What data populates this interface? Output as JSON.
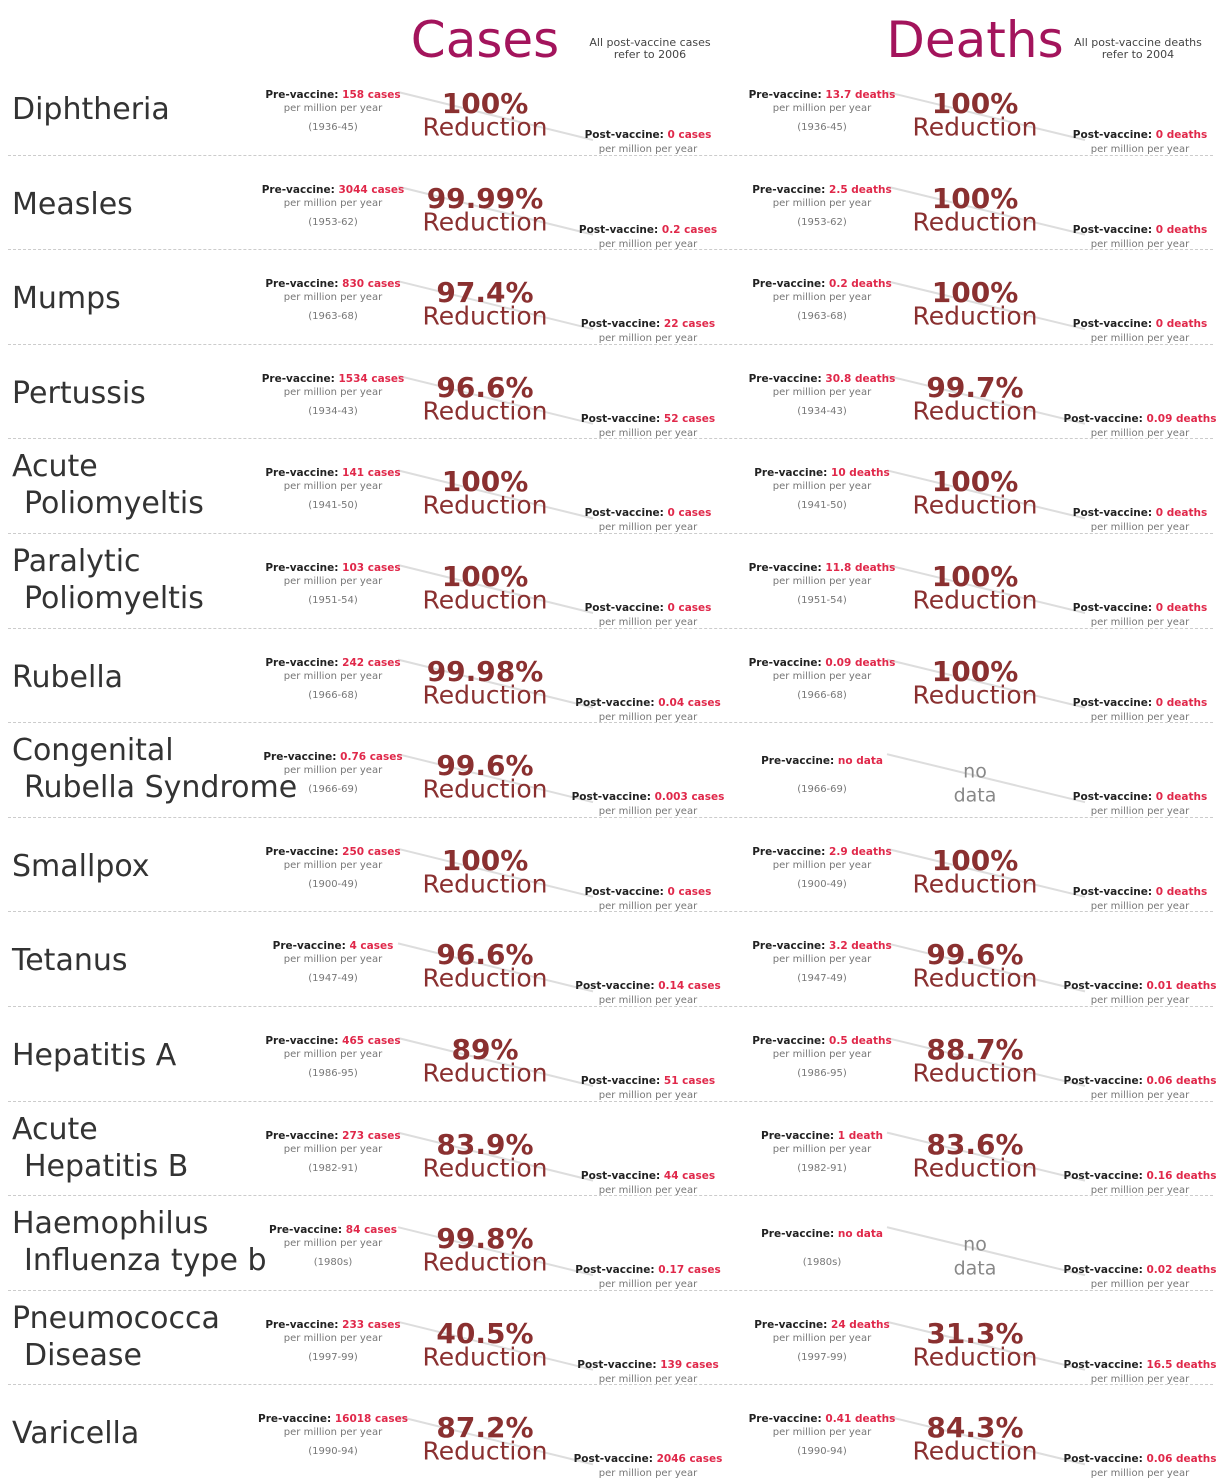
{
  "header": {
    "cases_title": "Cases",
    "cases_note": [
      "All post-vaccine cases",
      "refer to 2006"
    ],
    "deaths_title": "Deaths",
    "deaths_note": [
      "All post-vaccine deaths",
      "refer to 2004"
    ]
  },
  "labels": {
    "pre": "Pre-vaccine:",
    "post": "Post-vaccine:",
    "unit": "per million per year",
    "reduction": "Reduction",
    "no_data": [
      "no",
      "data"
    ]
  },
  "rows": [
    {
      "name": [
        "Diphtheria"
      ],
      "cases": {
        "pre": "158 cases",
        "period": "(1936-45)",
        "reduction": "100%",
        "post": "0 cases"
      },
      "deaths": {
        "pre": "13.7 deaths",
        "period": "(1936-45)",
        "reduction": "100%",
        "post": "0 deaths"
      }
    },
    {
      "name": [
        "Measles"
      ],
      "cases": {
        "pre": "3044 cases",
        "period": "(1953-62)",
        "reduction": "99.99%",
        "post": "0.2 cases"
      },
      "deaths": {
        "pre": "2.5 deaths",
        "period": "(1953-62)",
        "reduction": "100%",
        "post": "0 deaths"
      }
    },
    {
      "name": [
        "Mumps"
      ],
      "cases": {
        "pre": "830 cases",
        "period": "(1963-68)",
        "reduction": "97.4%",
        "post": "22 cases"
      },
      "deaths": {
        "pre": "0.2 deaths",
        "period": "(1963-68)",
        "reduction": "100%",
        "post": "0 deaths"
      }
    },
    {
      "name": [
        "Pertussis"
      ],
      "cases": {
        "pre": "1534 cases",
        "period": "(1934-43)",
        "reduction": "96.6%",
        "post": "52 cases"
      },
      "deaths": {
        "pre": "30.8 deaths",
        "period": "(1934-43)",
        "reduction": "99.7%",
        "post": "0.09 deaths"
      }
    },
    {
      "name": [
        "Acute",
        "Poliomyeltis"
      ],
      "cases": {
        "pre": "141 cases",
        "period": "(1941-50)",
        "reduction": "100%",
        "post": "0 cases"
      },
      "deaths": {
        "pre": "10 deaths",
        "period": "(1941-50)",
        "reduction": "100%",
        "post": "0 deaths"
      }
    },
    {
      "name": [
        "Paralytic",
        "Poliomyeltis"
      ],
      "cases": {
        "pre": "103 cases",
        "period": "(1951-54)",
        "reduction": "100%",
        "post": "0 cases"
      },
      "deaths": {
        "pre": "11.8 deaths",
        "period": "(1951-54)",
        "reduction": "100%",
        "post": "0 deaths"
      }
    },
    {
      "name": [
        "Rubella"
      ],
      "cases": {
        "pre": "242 cases",
        "period": "(1966-68)",
        "reduction": "99.98%",
        "post": "0.04 cases"
      },
      "deaths": {
        "pre": "0.09 deaths",
        "period": "(1966-68)",
        "reduction": "100%",
        "post": "0 deaths"
      }
    },
    {
      "name": [
        "Congenital",
        "Rubella Syndrome"
      ],
      "cases": {
        "pre": "0.76 cases",
        "period": "(1966-69)",
        "reduction": "99.6%",
        "post": "0.003 cases"
      },
      "deaths": {
        "pre": "no data",
        "period": "(1966-69)",
        "post": "0 deaths"
      }
    },
    {
      "name": [
        "Smallpox"
      ],
      "cases": {
        "pre": "250 cases",
        "period": "(1900-49)",
        "reduction": "100%",
        "post": "0 cases"
      },
      "deaths": {
        "pre": "2.9 deaths",
        "period": "(1900-49)",
        "reduction": "100%",
        "post": "0 deaths"
      }
    },
    {
      "name": [
        "Tetanus"
      ],
      "cases": {
        "pre": "4 cases",
        "period": "(1947-49)",
        "reduction": "96.6%",
        "post": "0.14 cases"
      },
      "deaths": {
        "pre": "3.2 deaths",
        "period": "(1947-49)",
        "reduction": "99.6%",
        "post": "0.01 deaths"
      }
    },
    {
      "name": [
        "Hepatitis A"
      ],
      "cases": {
        "pre": "465 cases",
        "period": "(1986-95)",
        "reduction": "89%",
        "post": "51 cases"
      },
      "deaths": {
        "pre": "0.5 deaths",
        "period": "(1986-95)",
        "reduction": "88.7%",
        "post": "0.06 deaths"
      }
    },
    {
      "name": [
        "Acute",
        "Hepatitis B"
      ],
      "cases": {
        "pre": "273 cases",
        "period": "(1982-91)",
        "reduction": "83.9%",
        "post": "44 cases"
      },
      "deaths": {
        "pre": "1 death",
        "period": "(1982-91)",
        "reduction": "83.6%",
        "post": "0.16 deaths"
      }
    },
    {
      "name": [
        "Haemophilus",
        "Influenza type b"
      ],
      "cases": {
        "pre": "84 cases",
        "period": "(1980s)",
        "reduction": "99.8%",
        "post": "0.17 cases"
      },
      "deaths": {
        "pre": "no data",
        "period": "(1980s)",
        "post": "0.02 deaths"
      }
    },
    {
      "name": [
        "Pneumococca",
        "Disease"
      ],
      "cases": {
        "pre": "233 cases",
        "period": "(1997-99)",
        "reduction": "40.5%",
        "post": "139 cases"
      },
      "deaths": {
        "pre": "24 deaths",
        "period": "(1997-99)",
        "reduction": "31.3%",
        "post": "16.5 deaths"
      }
    },
    {
      "name": [
        "Varicella"
      ],
      "cases": {
        "pre": "16018 cases",
        "period": "(1990-94)",
        "reduction": "87.2%",
        "post": "2046 cases"
      },
      "deaths": {
        "pre": "0.41 deaths",
        "period": "(1990-94)",
        "reduction": "84.3%",
        "post": "0.06 deaths"
      }
    }
  ]
}
